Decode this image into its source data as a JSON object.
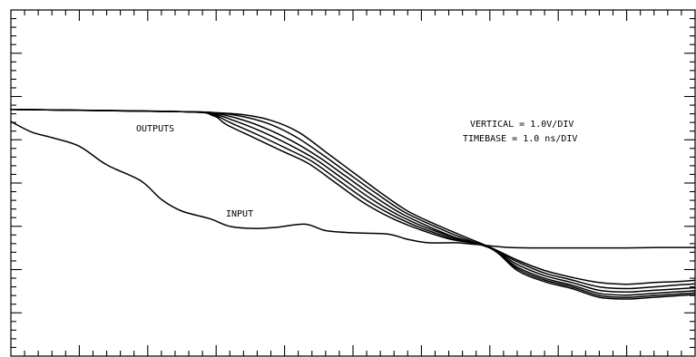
{
  "chart_data": {
    "type": "line",
    "title": "",
    "xlabel": "",
    "ylabel": "",
    "grid": false,
    "x_major_divisions": 10,
    "x_minor_per_major": 5,
    "y_major_divisions": 8,
    "y_minor_per_major": 5,
    "xlim": [
      0,
      10
    ],
    "ylim": [
      0,
      8
    ],
    "annotations": {
      "outputs": "OUTPUTS",
      "input": "INPUT",
      "vertical": "VERTICAL = 1.0V/DIV",
      "timebase": "TIMEBASE = 1.0 ns/DIV"
    },
    "series": [
      {
        "name": "INPUT",
        "points": [
          [
            0,
            5.42
          ],
          [
            0.3,
            5.18
          ],
          [
            0.6,
            5.05
          ],
          [
            1.0,
            4.85
          ],
          [
            1.4,
            4.42
          ],
          [
            1.9,
            4.05
          ],
          [
            2.2,
            3.62
          ],
          [
            2.5,
            3.35
          ],
          [
            2.9,
            3.18
          ],
          [
            3.2,
            3.0
          ],
          [
            3.55,
            2.95
          ],
          [
            3.9,
            2.98
          ],
          [
            4.3,
            3.05
          ],
          [
            4.6,
            2.9
          ],
          [
            5.0,
            2.85
          ],
          [
            5.5,
            2.82
          ],
          [
            5.8,
            2.7
          ],
          [
            6.1,
            2.62
          ],
          [
            6.5,
            2.62
          ],
          [
            6.8,
            2.58
          ],
          [
            7.2,
            2.52
          ],
          [
            7.6,
            2.5
          ],
          [
            8.0,
            2.5
          ],
          [
            8.5,
            2.5
          ],
          [
            9.0,
            2.5
          ],
          [
            9.5,
            2.51
          ],
          [
            10.0,
            2.51
          ]
        ]
      },
      {
        "name": "",
        "points": [
          [
            0,
            5.7
          ],
          [
            2.5,
            5.65
          ],
          [
            2.95,
            5.63
          ],
          [
            3.4,
            5.58
          ],
          [
            3.8,
            5.45
          ],
          [
            4.2,
            5.18
          ],
          [
            4.6,
            4.72
          ],
          [
            5.0,
            4.25
          ],
          [
            5.4,
            3.78
          ],
          [
            5.8,
            3.35
          ],
          [
            6.2,
            3.05
          ],
          [
            6.6,
            2.78
          ],
          [
            7.0,
            2.52
          ],
          [
            7.4,
            2.22
          ],
          [
            7.8,
            1.98
          ],
          [
            8.2,
            1.82
          ],
          [
            8.6,
            1.7
          ],
          [
            9.0,
            1.66
          ],
          [
            9.4,
            1.7
          ],
          [
            9.7,
            1.72
          ],
          [
            10.0,
            1.75
          ]
        ]
      },
      {
        "name": "",
        "points": [
          [
            0,
            5.7
          ],
          [
            2.5,
            5.65
          ],
          [
            2.95,
            5.63
          ],
          [
            3.35,
            5.55
          ],
          [
            3.75,
            5.38
          ],
          [
            4.15,
            5.08
          ],
          [
            4.55,
            4.66
          ],
          [
            4.95,
            4.2
          ],
          [
            5.35,
            3.75
          ],
          [
            5.75,
            3.33
          ],
          [
            6.15,
            3.03
          ],
          [
            6.55,
            2.76
          ],
          [
            7.0,
            2.5
          ],
          [
            7.4,
            2.18
          ],
          [
            7.8,
            1.92
          ],
          [
            8.2,
            1.76
          ],
          [
            8.6,
            1.6
          ],
          [
            9.0,
            1.56
          ],
          [
            9.4,
            1.6
          ],
          [
            9.7,
            1.64
          ],
          [
            10.0,
            1.67
          ]
        ]
      },
      {
        "name": "",
        "points": [
          [
            0,
            5.7
          ],
          [
            2.5,
            5.65
          ],
          [
            2.95,
            5.62
          ],
          [
            3.3,
            5.5
          ],
          [
            3.7,
            5.28
          ],
          [
            4.1,
            4.98
          ],
          [
            4.5,
            4.6
          ],
          [
            4.9,
            4.15
          ],
          [
            5.3,
            3.7
          ],
          [
            5.7,
            3.3
          ],
          [
            6.1,
            3.0
          ],
          [
            6.5,
            2.74
          ],
          [
            7.0,
            2.5
          ],
          [
            7.4,
            2.12
          ],
          [
            7.8,
            1.86
          ],
          [
            8.2,
            1.7
          ],
          [
            8.6,
            1.52
          ],
          [
            9.0,
            1.48
          ],
          [
            9.4,
            1.52
          ],
          [
            9.7,
            1.55
          ],
          [
            10.0,
            1.58
          ]
        ]
      },
      {
        "name": "",
        "points": [
          [
            0,
            5.7
          ],
          [
            2.5,
            5.65
          ],
          [
            2.95,
            5.6
          ],
          [
            3.25,
            5.45
          ],
          [
            3.65,
            5.2
          ],
          [
            4.05,
            4.9
          ],
          [
            4.45,
            4.55
          ],
          [
            4.85,
            4.1
          ],
          [
            5.25,
            3.65
          ],
          [
            5.65,
            3.27
          ],
          [
            6.05,
            2.98
          ],
          [
            6.5,
            2.73
          ],
          [
            7.0,
            2.5
          ],
          [
            7.4,
            2.06
          ],
          [
            7.8,
            1.8
          ],
          [
            8.2,
            1.64
          ],
          [
            8.6,
            1.45
          ],
          [
            9.0,
            1.41
          ],
          [
            9.4,
            1.45
          ],
          [
            9.7,
            1.48
          ],
          [
            10.0,
            1.51
          ]
        ]
      },
      {
        "name": "",
        "points": [
          [
            0,
            5.7
          ],
          [
            2.5,
            5.65
          ],
          [
            2.95,
            5.58
          ],
          [
            3.2,
            5.4
          ],
          [
            3.6,
            5.12
          ],
          [
            4.0,
            4.82
          ],
          [
            4.4,
            4.5
          ],
          [
            4.8,
            4.05
          ],
          [
            5.2,
            3.6
          ],
          [
            5.6,
            3.24
          ],
          [
            6.0,
            2.96
          ],
          [
            6.45,
            2.72
          ],
          [
            7.0,
            2.5
          ],
          [
            7.4,
            2.02
          ],
          [
            7.8,
            1.76
          ],
          [
            8.2,
            1.6
          ],
          [
            8.6,
            1.4
          ],
          [
            9.0,
            1.36
          ],
          [
            9.4,
            1.4
          ],
          [
            9.7,
            1.43
          ],
          [
            10.0,
            1.46
          ]
        ]
      },
      {
        "name": "",
        "points": [
          [
            0,
            5.7
          ],
          [
            2.5,
            5.65
          ],
          [
            2.95,
            5.56
          ],
          [
            3.15,
            5.35
          ],
          [
            3.55,
            5.05
          ],
          [
            3.95,
            4.75
          ],
          [
            4.35,
            4.45
          ],
          [
            4.75,
            4.0
          ],
          [
            5.15,
            3.55
          ],
          [
            5.55,
            3.2
          ],
          [
            5.95,
            2.94
          ],
          [
            6.4,
            2.71
          ],
          [
            7.0,
            2.5
          ],
          [
            7.4,
            1.98
          ],
          [
            7.8,
            1.72
          ],
          [
            8.2,
            1.56
          ],
          [
            8.6,
            1.36
          ],
          [
            9.0,
            1.32
          ],
          [
            9.4,
            1.36
          ],
          [
            9.7,
            1.39
          ],
          [
            10.0,
            1.42
          ]
        ]
      }
    ]
  }
}
